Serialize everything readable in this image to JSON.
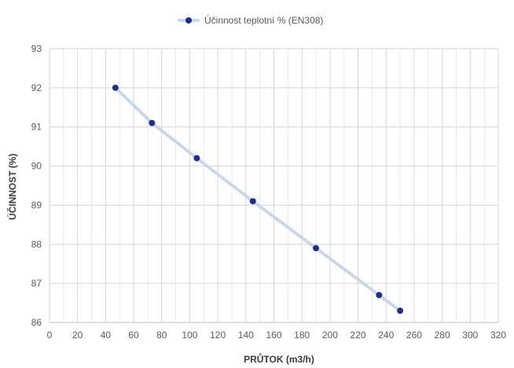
{
  "chart_data": {
    "type": "line",
    "xlabel": "PRŮTOK (m3/h)",
    "ylabel": "ÚČINNOST (%)",
    "xlim": [
      0,
      320
    ],
    "ylim": [
      86,
      93
    ],
    "x_ticks": [
      0,
      20,
      40,
      60,
      80,
      100,
      120,
      140,
      160,
      180,
      200,
      220,
      240,
      260,
      280,
      300,
      320
    ],
    "y_ticks": [
      86,
      87,
      88,
      89,
      90,
      91,
      92,
      93
    ],
    "x_minor_step": 10,
    "grid": true,
    "legend_position": "top",
    "series": [
      {
        "name": "Účinnost teplotní % (EN308)",
        "x": [
          47,
          73,
          105,
          145,
          190,
          235,
          250
        ],
        "values": [
          92.0,
          91.1,
          90.2,
          89.1,
          87.9,
          86.7,
          86.3
        ],
        "line_color": "#c9d7ea",
        "marker_color": "#1f2f8a"
      }
    ]
  }
}
